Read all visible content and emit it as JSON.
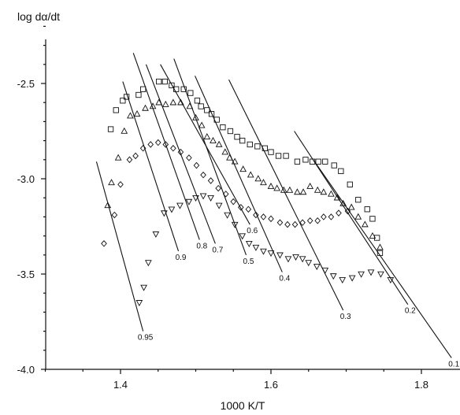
{
  "chart_data": {
    "type": "scatter",
    "xlabel": "1000 K/T",
    "ylabel": "log dα/dt",
    "xlim": [
      1.29,
      1.84
    ],
    "ylim": [
      -4.0,
      -2.2
    ],
    "x_ticks": [
      "1.4",
      "1.6",
      "1.8"
    ],
    "y_ticks": [
      "-2.5",
      "-3.0",
      "-3.5",
      "-4.0"
    ],
    "grid": false,
    "legend": "none",
    "series": [
      {
        "marker": "square",
        "points": [
          [
            1.387,
            -2.74
          ],
          [
            1.394,
            -2.64
          ],
          [
            1.403,
            -2.59
          ],
          [
            1.408,
            -2.57
          ],
          [
            1.424,
            -2.56
          ],
          [
            1.43,
            -2.53
          ],
          [
            1.451,
            -2.49
          ],
          [
            1.459,
            -2.49
          ],
          [
            1.468,
            -2.51
          ],
          [
            1.474,
            -2.53
          ],
          [
            1.484,
            -2.53
          ],
          [
            1.493,
            -2.55
          ],
          [
            1.502,
            -2.59
          ],
          [
            1.507,
            -2.62
          ],
          [
            1.515,
            -2.64
          ],
          [
            1.521,
            -2.66
          ],
          [
            1.528,
            -2.69
          ],
          [
            1.536,
            -2.73
          ],
          [
            1.546,
            -2.75
          ],
          [
            1.555,
            -2.78
          ],
          [
            1.562,
            -2.8
          ],
          [
            1.572,
            -2.82
          ],
          [
            1.582,
            -2.83
          ],
          [
            1.592,
            -2.84
          ],
          [
            1.6,
            -2.86
          ],
          [
            1.61,
            -2.88
          ],
          [
            1.62,
            -2.88
          ],
          [
            1.635,
            -2.91
          ],
          [
            1.646,
            -2.9
          ],
          [
            1.655,
            -2.91
          ],
          [
            1.663,
            -2.91
          ],
          [
            1.672,
            -2.91
          ],
          [
            1.684,
            -2.93
          ],
          [
            1.693,
            -2.96
          ],
          [
            1.705,
            -3.03
          ],
          [
            1.716,
            -3.11
          ],
          [
            1.728,
            -3.16
          ],
          [
            1.735,
            -3.21
          ],
          [
            1.741,
            -3.31
          ],
          [
            1.745,
            -3.39
          ]
        ]
      },
      {
        "marker": "triangle-up",
        "points": [
          [
            1.383,
            -3.14
          ],
          [
            1.388,
            -3.02
          ],
          [
            1.397,
            -2.89
          ],
          [
            1.405,
            -2.75
          ],
          [
            1.413,
            -2.67
          ],
          [
            1.422,
            -2.66
          ],
          [
            1.433,
            -2.63
          ],
          [
            1.443,
            -2.62
          ],
          [
            1.451,
            -2.6
          ],
          [
            1.46,
            -2.61
          ],
          [
            1.47,
            -2.6
          ],
          [
            1.48,
            -2.6
          ],
          [
            1.492,
            -2.62
          ],
          [
            1.5,
            -2.68
          ],
          [
            1.508,
            -2.72
          ],
          [
            1.515,
            -2.78
          ],
          [
            1.523,
            -2.8
          ],
          [
            1.531,
            -2.82
          ],
          [
            1.539,
            -2.86
          ],
          [
            1.545,
            -2.89
          ],
          [
            1.552,
            -2.91
          ],
          [
            1.563,
            -2.95
          ],
          [
            1.573,
            -2.98
          ],
          [
            1.583,
            -3.0
          ],
          [
            1.59,
            -3.02
          ],
          [
            1.6,
            -3.04
          ],
          [
            1.608,
            -3.05
          ],
          [
            1.617,
            -3.06
          ],
          [
            1.625,
            -3.06
          ],
          [
            1.635,
            -3.07
          ],
          [
            1.643,
            -3.07
          ],
          [
            1.652,
            -3.04
          ],
          [
            1.662,
            -3.06
          ],
          [
            1.67,
            -3.07
          ],
          [
            1.68,
            -3.08
          ],
          [
            1.688,
            -3.1
          ],
          [
            1.696,
            -3.13
          ],
          [
            1.707,
            -3.15
          ],
          [
            1.716,
            -3.2
          ],
          [
            1.725,
            -3.24
          ],
          [
            1.735,
            -3.3
          ],
          [
            1.745,
            -3.36
          ]
        ]
      },
      {
        "marker": "diamond",
        "points": [
          [
            1.378,
            -3.34
          ],
          [
            1.392,
            -3.19
          ],
          [
            1.4,
            -3.03
          ],
          [
            1.412,
            -2.9
          ],
          [
            1.42,
            -2.88
          ],
          [
            1.43,
            -2.84
          ],
          [
            1.44,
            -2.82
          ],
          [
            1.45,
            -2.81
          ],
          [
            1.46,
            -2.82
          ],
          [
            1.47,
            -2.84
          ],
          [
            1.48,
            -2.86
          ],
          [
            1.491,
            -2.89
          ],
          [
            1.501,
            -2.93
          ],
          [
            1.51,
            -2.98
          ],
          [
            1.52,
            -3.01
          ],
          [
            1.53,
            -3.05
          ],
          [
            1.54,
            -3.08
          ],
          [
            1.55,
            -3.12
          ],
          [
            1.56,
            -3.15
          ],
          [
            1.57,
            -3.16
          ],
          [
            1.58,
            -3.19
          ],
          [
            1.59,
            -3.2
          ],
          [
            1.6,
            -3.21
          ],
          [
            1.612,
            -3.23
          ],
          [
            1.622,
            -3.24
          ],
          [
            1.632,
            -3.24
          ],
          [
            1.642,
            -3.23
          ],
          [
            1.652,
            -3.22
          ],
          [
            1.662,
            -3.22
          ],
          [
            1.67,
            -3.2
          ],
          [
            1.68,
            -3.2
          ],
          [
            1.69,
            -3.18
          ],
          [
            1.702,
            -3.17
          ]
        ]
      },
      {
        "marker": "triangle-down",
        "points": [
          [
            1.425,
            -3.65
          ],
          [
            1.431,
            -3.57
          ],
          [
            1.437,
            -3.44
          ],
          [
            1.447,
            -3.29
          ],
          [
            1.458,
            -3.18
          ],
          [
            1.468,
            -3.16
          ],
          [
            1.479,
            -3.14
          ],
          [
            1.491,
            -3.12
          ],
          [
            1.5,
            -3.1
          ],
          [
            1.51,
            -3.09
          ],
          [
            1.52,
            -3.1
          ],
          [
            1.531,
            -3.14
          ],
          [
            1.542,
            -3.19
          ],
          [
            1.552,
            -3.24
          ],
          [
            1.562,
            -3.3
          ],
          [
            1.571,
            -3.34
          ],
          [
            1.58,
            -3.36
          ],
          [
            1.59,
            -3.38
          ],
          [
            1.6,
            -3.39
          ],
          [
            1.612,
            -3.4
          ],
          [
            1.623,
            -3.42
          ],
          [
            1.633,
            -3.41
          ],
          [
            1.642,
            -3.42
          ],
          [
            1.65,
            -3.44
          ],
          [
            1.661,
            -3.46
          ],
          [
            1.672,
            -3.48
          ],
          [
            1.683,
            -3.51
          ],
          [
            1.695,
            -3.53
          ],
          [
            1.708,
            -3.52
          ],
          [
            1.72,
            -3.5
          ],
          [
            1.733,
            -3.49
          ],
          [
            1.746,
            -3.5
          ],
          [
            1.759,
            -3.53
          ]
        ]
      }
    ],
    "isoconversional_lines": [
      {
        "label": "0.95",
        "x1": 1.368,
        "y1": -2.91,
        "x2": 1.43,
        "y2": -3.8
      },
      {
        "label": "0.9",
        "x1": 1.403,
        "y1": -2.49,
        "x2": 1.477,
        "y2": -3.38
      },
      {
        "label": "0.8",
        "x1": 1.417,
        "y1": -2.34,
        "x2": 1.505,
        "y2": -3.32
      },
      {
        "label": "0.7",
        "x1": 1.434,
        "y1": -2.4,
        "x2": 1.526,
        "y2": -3.34
      },
      {
        "label": "0.6",
        "x1": 1.453,
        "y1": -2.4,
        "x2": 1.572,
        "y2": -3.24
      },
      {
        "label": "0.5",
        "x1": 1.471,
        "y1": -2.37,
        "x2": 1.567,
        "y2": -3.4
      },
      {
        "label": "0.4",
        "x1": 1.499,
        "y1": -2.46,
        "x2": 1.615,
        "y2": -3.49
      },
      {
        "label": "0.3",
        "x1": 1.544,
        "y1": -2.48,
        "x2": 1.696,
        "y2": -3.69
      },
      {
        "label": "0.2",
        "x1": 1.631,
        "y1": -2.75,
        "x2": 1.782,
        "y2": -3.66
      },
      {
        "label": "0.1",
        "x1": 1.658,
        "y1": -2.91,
        "x2": 1.84,
        "y2": -3.94
      }
    ]
  }
}
